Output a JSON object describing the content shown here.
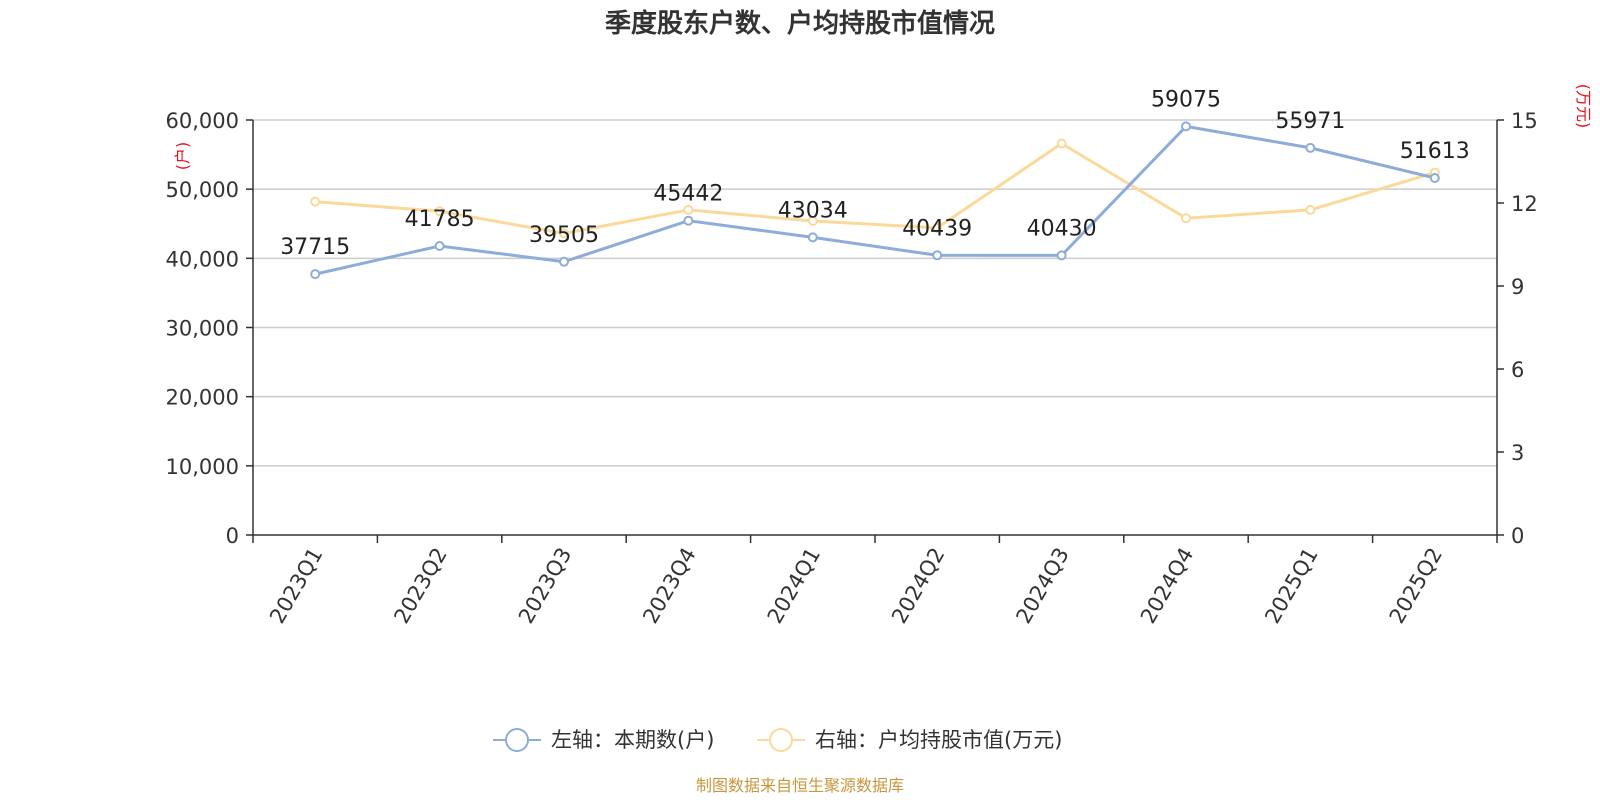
{
  "chart_data": {
    "type": "line",
    "title": "季度股东户数、户均持股市值情况",
    "categories": [
      "2023Q1",
      "2023Q2",
      "2023Q3",
      "2023Q4",
      "2024Q1",
      "2024Q2",
      "2024Q3",
      "2024Q4",
      "2025Q1",
      "2025Q2"
    ],
    "left_axis": {
      "unit_label": "(户)",
      "ylim": [
        0,
        60000
      ],
      "ticks": [
        "0",
        "10,000",
        "20,000",
        "30,000",
        "40,000",
        "50,000",
        "60,000"
      ]
    },
    "right_axis": {
      "unit_label": "(万元)",
      "ylim": [
        0,
        15
      ],
      "ticks": [
        "0",
        "3",
        "6",
        "9",
        "12",
        "15"
      ]
    },
    "series": [
      {
        "name": "左轴：本期数(户)",
        "axis": "left",
        "color": "#8eacd8",
        "values": [
          37715,
          41785,
          39505,
          45442,
          43034,
          40439,
          40430,
          59075,
          55971,
          51613
        ],
        "labels": [
          "37715",
          "41785",
          "39505",
          "45442",
          "43034",
          "40439",
          "40430",
          "59075",
          "55971",
          "51613"
        ]
      },
      {
        "name": "右轴：户均持股市值(万元)",
        "axis": "right",
        "color": "#fad99a",
        "values": [
          12.05,
          11.7,
          10.9,
          11.75,
          11.35,
          11.1,
          14.15,
          11.45,
          11.75,
          13.1
        ]
      }
    ],
    "grid": true,
    "legend_position": "bottom-center",
    "source_note": "制图数据来自恒生聚源数据库",
    "colors": {
      "axis_unit": "#e8101a",
      "source_note": "#c8963c",
      "grid": "#cccccc",
      "axis": "#333333",
      "text": "#333333"
    }
  }
}
